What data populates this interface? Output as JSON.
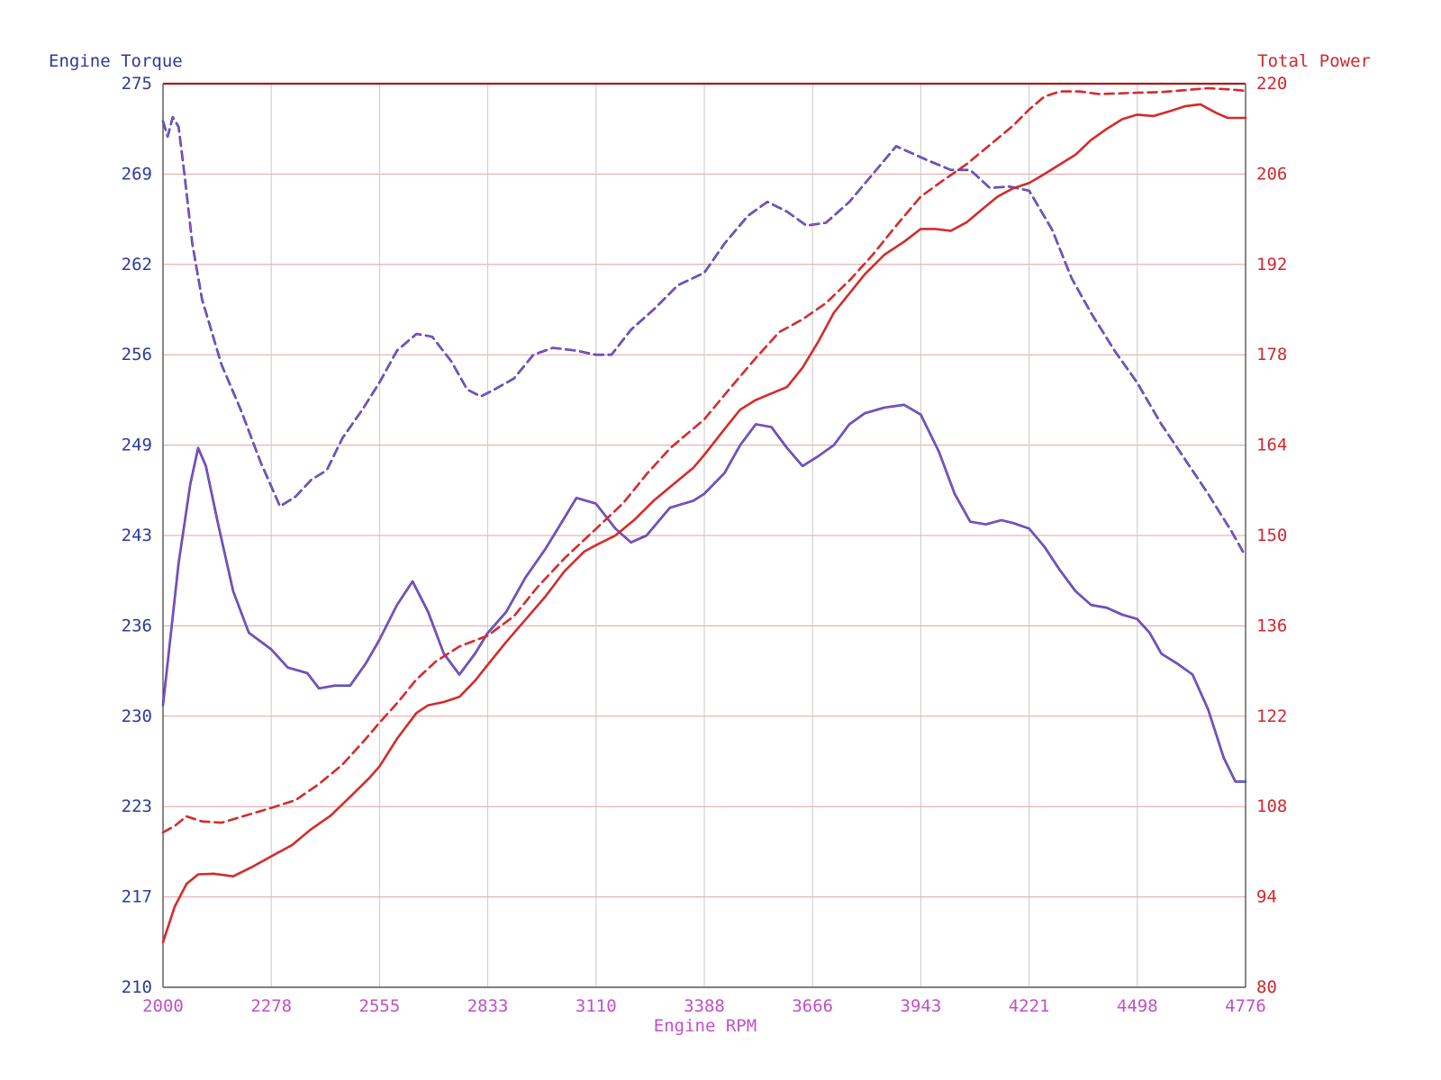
{
  "chart_data": {
    "type": "line",
    "xlabel": "Engine RPM",
    "ylabel_left": "Engine Torque",
    "ylabel_right": "Total Power",
    "xlim": [
      2000,
      4776
    ],
    "ylim_left": [
      210,
      275
    ],
    "ylim_right": [
      80,
      220
    ],
    "x_ticks": [
      "2000",
      "2278",
      "2555",
      "2833",
      "3110",
      "3388",
      "3666",
      "3943",
      "4221",
      "4498",
      "4776"
    ],
    "y_left_ticks": [
      "210",
      "217",
      "223",
      "230",
      "236",
      "243",
      "249",
      "256",
      "262",
      "269",
      "275"
    ],
    "y_right_ticks": [
      "80",
      "94",
      "108",
      "122",
      "136",
      "150",
      "164",
      "178",
      "192",
      "206",
      "220"
    ],
    "grid": true,
    "colors": {
      "torque": "#2a3aa8",
      "torque_overlay": "#c058c8",
      "power": "#d62a2a",
      "grid_h": "#e8a0a0",
      "grid_v": "#c8c8c8",
      "frame_top": "#b01818"
    },
    "series": [
      {
        "axis": "left",
        "style": "dashed",
        "points": [
          [
            2000,
            272.3
          ],
          [
            2012,
            271.2
          ],
          [
            2025,
            272.6
          ],
          [
            2040,
            271.9
          ],
          [
            2055,
            268.5
          ],
          [
            2075,
            263.5
          ],
          [
            2100,
            259.5
          ],
          [
            2150,
            254.8
          ],
          [
            2200,
            251.5
          ],
          [
            2250,
            247.8
          ],
          [
            2300,
            244.6
          ],
          [
            2340,
            245.3
          ],
          [
            2380,
            246.5
          ],
          [
            2420,
            247.2
          ],
          [
            2460,
            249.5
          ],
          [
            2510,
            251.5
          ],
          [
            2555,
            253.5
          ],
          [
            2600,
            255.8
          ],
          [
            2650,
            257.0
          ],
          [
            2690,
            256.8
          ],
          [
            2740,
            255.0
          ],
          [
            2780,
            253.0
          ],
          [
            2815,
            252.5
          ],
          [
            2850,
            253.0
          ],
          [
            2900,
            253.8
          ],
          [
            2950,
            255.5
          ],
          [
            3000,
            256.0
          ],
          [
            3060,
            255.8
          ],
          [
            3110,
            255.5
          ],
          [
            3150,
            255.5
          ],
          [
            3200,
            257.3
          ],
          [
            3260,
            258.8
          ],
          [
            3320,
            260.5
          ],
          [
            3388,
            261.4
          ],
          [
            3440,
            263.5
          ],
          [
            3500,
            265.5
          ],
          [
            3550,
            266.5
          ],
          [
            3600,
            265.8
          ],
          [
            3650,
            264.8
          ],
          [
            3700,
            265.0
          ],
          [
            3760,
            266.5
          ],
          [
            3820,
            268.5
          ],
          [
            3880,
            270.5
          ],
          [
            3920,
            270.0
          ],
          [
            3960,
            269.5
          ],
          [
            4020,
            268.8
          ],
          [
            4070,
            268.8
          ],
          [
            4120,
            267.5
          ],
          [
            4170,
            267.6
          ],
          [
            4221,
            267.3
          ],
          [
            4280,
            264.5
          ],
          [
            4330,
            261.0
          ],
          [
            4380,
            258.5
          ],
          [
            4440,
            255.8
          ],
          [
            4498,
            253.5
          ],
          [
            4560,
            250.5
          ],
          [
            4620,
            248.0
          ],
          [
            4680,
            245.5
          ],
          [
            4740,
            242.8
          ],
          [
            4776,
            241.0
          ]
        ]
      },
      {
        "axis": "left",
        "style": "solid",
        "points": [
          [
            2000,
            230.3
          ],
          [
            2040,
            240.5
          ],
          [
            2070,
            246.2
          ],
          [
            2090,
            248.8
          ],
          [
            2110,
            247.5
          ],
          [
            2140,
            243.5
          ],
          [
            2180,
            238.5
          ],
          [
            2220,
            235.5
          ],
          [
            2278,
            234.3
          ],
          [
            2320,
            233.0
          ],
          [
            2370,
            232.6
          ],
          [
            2400,
            231.5
          ],
          [
            2440,
            231.7
          ],
          [
            2480,
            231.7
          ],
          [
            2520,
            233.3
          ],
          [
            2555,
            235.0
          ],
          [
            2600,
            237.5
          ],
          [
            2640,
            239.2
          ],
          [
            2680,
            237.0
          ],
          [
            2720,
            234.0
          ],
          [
            2760,
            232.5
          ],
          [
            2800,
            234.0
          ],
          [
            2833,
            235.5
          ],
          [
            2880,
            237.0
          ],
          [
            2930,
            239.5
          ],
          [
            2980,
            241.5
          ],
          [
            3030,
            243.8
          ],
          [
            3060,
            245.2
          ],
          [
            3110,
            244.8
          ],
          [
            3160,
            243.0
          ],
          [
            3200,
            242.0
          ],
          [
            3240,
            242.5
          ],
          [
            3300,
            244.5
          ],
          [
            3360,
            245.0
          ],
          [
            3388,
            245.5
          ],
          [
            3440,
            247.0
          ],
          [
            3480,
            249.0
          ],
          [
            3520,
            250.5
          ],
          [
            3560,
            250.3
          ],
          [
            3600,
            248.8
          ],
          [
            3640,
            247.5
          ],
          [
            3680,
            248.2
          ],
          [
            3720,
            249.0
          ],
          [
            3760,
            250.5
          ],
          [
            3800,
            251.3
          ],
          [
            3850,
            251.7
          ],
          [
            3900,
            251.9
          ],
          [
            3943,
            251.2
          ],
          [
            3990,
            248.5
          ],
          [
            4030,
            245.5
          ],
          [
            4070,
            243.5
          ],
          [
            4110,
            243.3
          ],
          [
            4150,
            243.6
          ],
          [
            4180,
            243.4
          ],
          [
            4221,
            243.0
          ],
          [
            4260,
            241.7
          ],
          [
            4300,
            240.0
          ],
          [
            4340,
            238.5
          ],
          [
            4380,
            237.5
          ],
          [
            4420,
            237.3
          ],
          [
            4460,
            236.8
          ],
          [
            4498,
            236.5
          ],
          [
            4530,
            235.5
          ],
          [
            4560,
            234.0
          ],
          [
            4600,
            233.3
          ],
          [
            4640,
            232.5
          ],
          [
            4680,
            230.0
          ],
          [
            4720,
            226.5
          ],
          [
            4750,
            224.8
          ],
          [
            4776,
            224.8
          ]
        ]
      },
      {
        "axis": "right",
        "style": "dashed",
        "points": [
          [
            2000,
            104.0
          ],
          [
            2030,
            105.0
          ],
          [
            2060,
            106.5
          ],
          [
            2100,
            105.7
          ],
          [
            2150,
            105.5
          ],
          [
            2200,
            106.4
          ],
          [
            2278,
            107.8
          ],
          [
            2340,
            109.0
          ],
          [
            2400,
            111.5
          ],
          [
            2460,
            114.5
          ],
          [
            2520,
            118.5
          ],
          [
            2555,
            121.0
          ],
          [
            2600,
            124.0
          ],
          [
            2650,
            127.7
          ],
          [
            2700,
            130.5
          ],
          [
            2760,
            132.8
          ],
          [
            2833,
            134.5
          ],
          [
            2900,
            137.5
          ],
          [
            2960,
            142.0
          ],
          [
            3030,
            146.5
          ],
          [
            3110,
            151.0
          ],
          [
            3180,
            155.0
          ],
          [
            3240,
            159.5
          ],
          [
            3300,
            163.5
          ],
          [
            3388,
            168.0
          ],
          [
            3450,
            172.5
          ],
          [
            3520,
            177.5
          ],
          [
            3580,
            181.5
          ],
          [
            3640,
            183.5
          ],
          [
            3700,
            186.0
          ],
          [
            3760,
            189.5
          ],
          [
            3820,
            193.5
          ],
          [
            3880,
            198.0
          ],
          [
            3943,
            202.5
          ],
          [
            4000,
            205.0
          ],
          [
            4060,
            207.5
          ],
          [
            4120,
            210.5
          ],
          [
            4180,
            213.5
          ],
          [
            4221,
            216.0
          ],
          [
            4260,
            218.0
          ],
          [
            4300,
            218.8
          ],
          [
            4350,
            218.8
          ],
          [
            4400,
            218.4
          ],
          [
            4450,
            218.5
          ],
          [
            4498,
            218.6
          ],
          [
            4560,
            218.7
          ],
          [
            4620,
            219.0
          ],
          [
            4680,
            219.3
          ],
          [
            4740,
            219.1
          ],
          [
            4776,
            218.9
          ]
        ]
      },
      {
        "axis": "right",
        "style": "solid",
        "points": [
          [
            2000,
            87.0
          ],
          [
            2030,
            92.5
          ],
          [
            2060,
            96.0
          ],
          [
            2090,
            97.5
          ],
          [
            2130,
            97.6
          ],
          [
            2180,
            97.2
          ],
          [
            2230,
            98.7
          ],
          [
            2278,
            100.3
          ],
          [
            2330,
            102.0
          ],
          [
            2380,
            104.5
          ],
          [
            2430,
            106.6
          ],
          [
            2480,
            109.5
          ],
          [
            2530,
            112.5
          ],
          [
            2555,
            114.2
          ],
          [
            2600,
            118.5
          ],
          [
            2650,
            122.5
          ],
          [
            2680,
            123.7
          ],
          [
            2720,
            124.2
          ],
          [
            2760,
            125.0
          ],
          [
            2800,
            127.5
          ],
          [
            2833,
            130.0
          ],
          [
            2880,
            133.5
          ],
          [
            2930,
            137.0
          ],
          [
            2980,
            140.5
          ],
          [
            3030,
            144.5
          ],
          [
            3080,
            147.5
          ],
          [
            3110,
            148.5
          ],
          [
            3160,
            150.0
          ],
          [
            3210,
            152.5
          ],
          [
            3260,
            155.5
          ],
          [
            3310,
            158.0
          ],
          [
            3360,
            160.5
          ],
          [
            3388,
            162.5
          ],
          [
            3440,
            166.5
          ],
          [
            3480,
            169.5
          ],
          [
            3520,
            171.0
          ],
          [
            3560,
            172.0
          ],
          [
            3600,
            173.0
          ],
          [
            3640,
            176.0
          ],
          [
            3680,
            180.0
          ],
          [
            3720,
            184.5
          ],
          [
            3760,
            187.5
          ],
          [
            3800,
            190.5
          ],
          [
            3850,
            193.5
          ],
          [
            3900,
            195.5
          ],
          [
            3943,
            197.5
          ],
          [
            3980,
            197.5
          ],
          [
            4020,
            197.2
          ],
          [
            4060,
            198.5
          ],
          [
            4100,
            200.5
          ],
          [
            4140,
            202.5
          ],
          [
            4180,
            203.8
          ],
          [
            4221,
            204.6
          ],
          [
            4260,
            206.0
          ],
          [
            4300,
            207.5
          ],
          [
            4340,
            209.0
          ],
          [
            4380,
            211.3
          ],
          [
            4420,
            213.0
          ],
          [
            4460,
            214.5
          ],
          [
            4498,
            215.2
          ],
          [
            4540,
            215.0
          ],
          [
            4580,
            215.7
          ],
          [
            4620,
            216.5
          ],
          [
            4660,
            216.8
          ],
          [
            4700,
            215.5
          ],
          [
            4730,
            214.7
          ],
          [
            4776,
            214.7
          ]
        ]
      }
    ]
  }
}
